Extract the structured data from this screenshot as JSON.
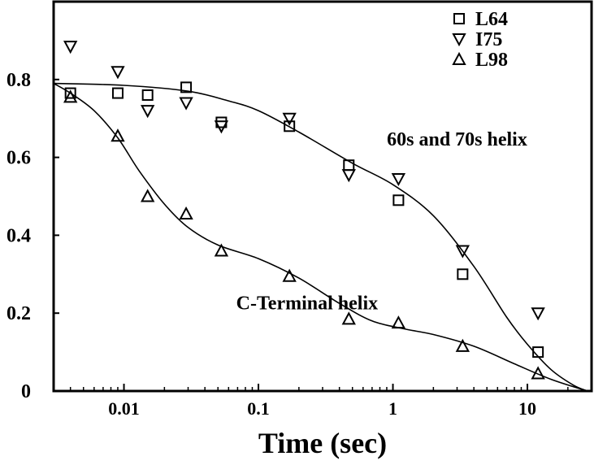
{
  "chart_data": {
    "type": "scatter",
    "title": "",
    "xlabel": "Time (sec)",
    "ylabel": "",
    "x_scale": "log",
    "xlim": [
      0.003,
      30
    ],
    "ylim": [
      0,
      1.0
    ],
    "grid": false,
    "legend_position": "top-right",
    "x_ticks": [
      {
        "value": 0.01,
        "label": "0.01"
      },
      {
        "value": 0.1,
        "label": "0.1"
      },
      {
        "value": 1,
        "label": "1"
      },
      {
        "value": 10,
        "label": "10"
      }
    ],
    "y_ticks": [
      {
        "value": 0,
        "label": "0"
      },
      {
        "value": 0.2,
        "label": "0.2"
      },
      {
        "value": 0.4,
        "label": "0.4"
      },
      {
        "value": 0.6,
        "label": "0.6"
      },
      {
        "value": 0.8,
        "label": "0.8"
      }
    ],
    "series": [
      {
        "name": "L64",
        "marker": "square",
        "points": [
          [
            0.004,
            0.765
          ],
          [
            0.009,
            0.765
          ],
          [
            0.015,
            0.76
          ],
          [
            0.029,
            0.78
          ],
          [
            0.053,
            0.69
          ],
          [
            0.17,
            0.68
          ],
          [
            0.47,
            0.58
          ],
          [
            1.1,
            0.49
          ],
          [
            3.3,
            0.3
          ],
          [
            12,
            0.1
          ]
        ]
      },
      {
        "name": "I75",
        "marker": "triangle-down",
        "points": [
          [
            0.004,
            0.885
          ],
          [
            0.009,
            0.82
          ],
          [
            0.015,
            0.72
          ],
          [
            0.029,
            0.74
          ],
          [
            0.053,
            0.68
          ],
          [
            0.17,
            0.7
          ],
          [
            0.47,
            0.555
          ],
          [
            1.1,
            0.545
          ],
          [
            3.3,
            0.36
          ],
          [
            12,
            0.2
          ]
        ]
      },
      {
        "name": "L98",
        "marker": "triangle-up",
        "points": [
          [
            0.004,
            0.755
          ],
          [
            0.009,
            0.655
          ],
          [
            0.015,
            0.5
          ],
          [
            0.029,
            0.455
          ],
          [
            0.053,
            0.36
          ],
          [
            0.17,
            0.295
          ],
          [
            0.47,
            0.185
          ],
          [
            1.1,
            0.175
          ],
          [
            3.3,
            0.115
          ],
          [
            12,
            0.045
          ]
        ]
      }
    ],
    "fit_curves": [
      {
        "label": "60s and 70s helix",
        "points": [
          [
            0.003,
            0.79
          ],
          [
            0.01,
            0.785
          ],
          [
            0.03,
            0.77
          ],
          [
            0.06,
            0.745
          ],
          [
            0.1,
            0.72
          ],
          [
            0.2,
            0.665
          ],
          [
            0.5,
            0.585
          ],
          [
            1,
            0.53
          ],
          [
            2,
            0.45
          ],
          [
            4,
            0.32
          ],
          [
            7,
            0.19
          ],
          [
            10,
            0.12
          ],
          [
            15,
            0.055
          ],
          [
            22,
            0.015
          ],
          [
            28,
            0.0
          ]
        ]
      },
      {
        "label": "C-Terminal helix",
        "points": [
          [
            0.003,
            0.79
          ],
          [
            0.004,
            0.765
          ],
          [
            0.006,
            0.72
          ],
          [
            0.009,
            0.65
          ],
          [
            0.013,
            0.565
          ],
          [
            0.02,
            0.48
          ],
          [
            0.03,
            0.42
          ],
          [
            0.05,
            0.375
          ],
          [
            0.1,
            0.34
          ],
          [
            0.2,
            0.29
          ],
          [
            0.4,
            0.225
          ],
          [
            0.7,
            0.18
          ],
          [
            1.2,
            0.16
          ],
          [
            2,
            0.145
          ],
          [
            4,
            0.115
          ],
          [
            8,
            0.07
          ],
          [
            15,
            0.03
          ],
          [
            28,
            0.0
          ]
        ]
      }
    ],
    "annotations": [
      {
        "text": "60s and 70s helix",
        "x": 3.0,
        "y": 0.63
      },
      {
        "text": "C-Terminal helix",
        "x": 0.23,
        "y": 0.21
      }
    ]
  }
}
